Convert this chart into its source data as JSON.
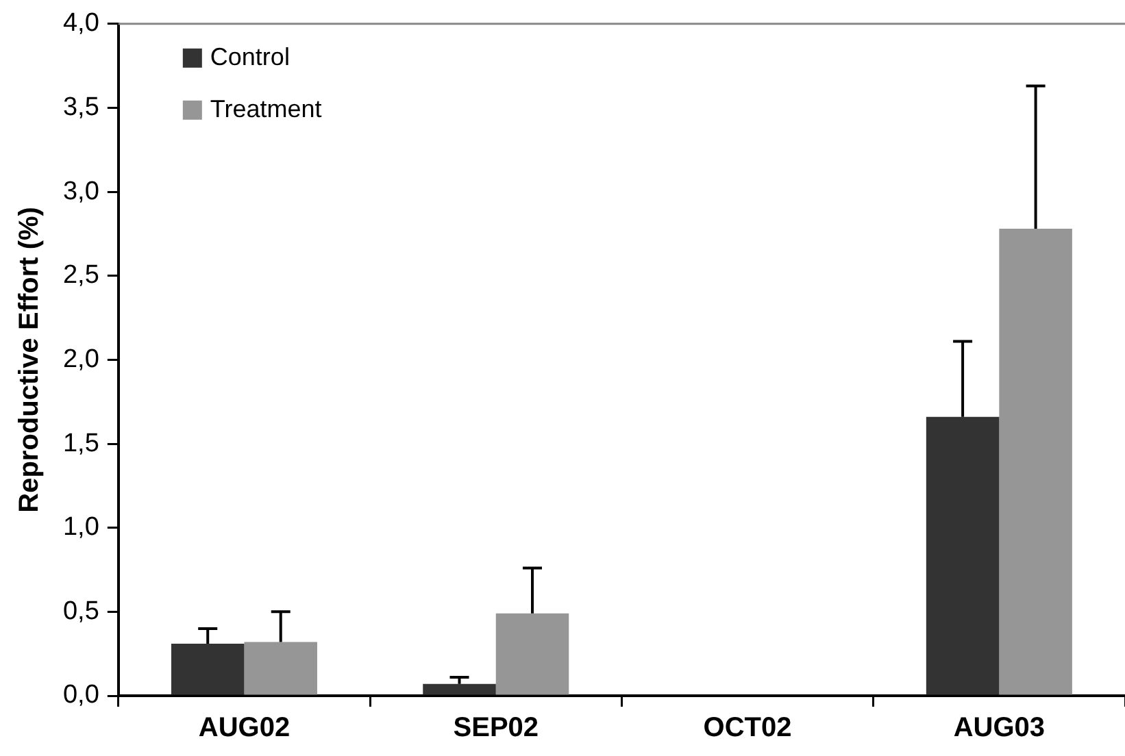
{
  "chart_data": {
    "type": "bar",
    "ylabel": "Reproductive Effort (%)",
    "categories": [
      "AUG02",
      "SEP02",
      "OCT02",
      "AUG03"
    ],
    "series": [
      {
        "name": "Control",
        "color": "#333333",
        "values": [
          0.31,
          0.07,
          0,
          1.66
        ],
        "errors": [
          [
            0.31,
            0.4
          ],
          [
            0.07,
            0.11
          ],
          null,
          [
            1.66,
            2.11
          ]
        ]
      },
      {
        "name": "Treatment",
        "color": "#969696",
        "values": [
          0.32,
          0.49,
          0,
          2.78
        ],
        "errors": [
          [
            0.32,
            0.5
          ],
          [
            0.49,
            0.76
          ],
          null,
          [
            2.78,
            3.63
          ]
        ]
      }
    ],
    "ylim": [
      0,
      4
    ],
    "yticks": [
      {
        "value": 0,
        "label": "0,0"
      },
      {
        "value": 0.5,
        "label": "0,5"
      },
      {
        "value": 1,
        "label": "1,0"
      },
      {
        "value": 1.5,
        "label": "1,5"
      },
      {
        "value": 2,
        "label": "2,0"
      },
      {
        "value": 2.5,
        "label": "2,5"
      },
      {
        "value": 3,
        "label": "3,0"
      },
      {
        "value": 3.5,
        "label": "3,5"
      },
      {
        "value": 4,
        "label": "4,0"
      }
    ],
    "grid": false,
    "legend": "top left"
  }
}
